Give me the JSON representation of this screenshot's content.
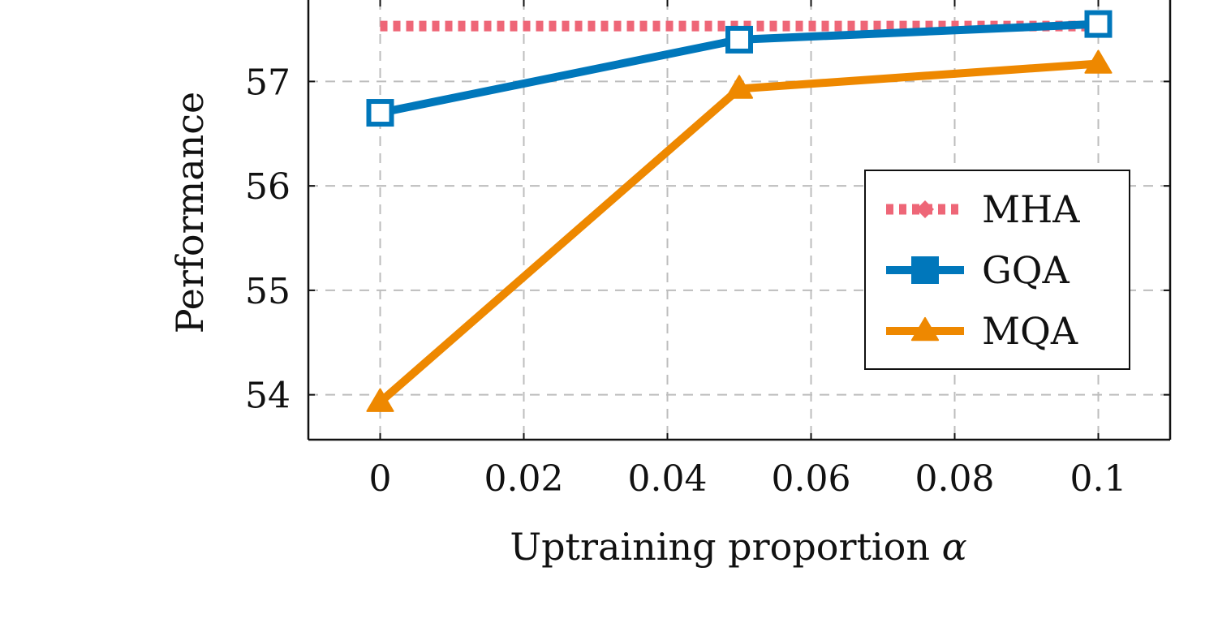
{
  "chart_data": {
    "type": "line",
    "title": "",
    "xlabel": "Uptraining proportion",
    "xlabel_symbol": "α",
    "ylabel": "Performance",
    "x_ticks": [
      0,
      0.02,
      0.04,
      0.06,
      0.08,
      0.1
    ],
    "x_tick_labels": [
      "0",
      "0.02",
      "0.04",
      "0.06",
      "0.08",
      "0.1"
    ],
    "y_ticks": [
      54,
      55,
      56,
      57
    ],
    "y_tick_labels": [
      "54",
      "55",
      "56",
      "57"
    ],
    "xlim": [
      -0.01,
      0.11
    ],
    "ylim": [
      53.57,
      57.78
    ],
    "grid": true,
    "legend_position": "right",
    "series": [
      {
        "name": "MHA",
        "color": "#ee6677",
        "style": "dotted",
        "marker": "diamond",
        "x": [
          0,
          0.05,
          0.1
        ],
        "y": [
          57.53,
          57.53,
          57.53
        ]
      },
      {
        "name": "GQA",
        "color": "#0077bb",
        "style": "solid",
        "marker": "square",
        "x": [
          0,
          0.05,
          0.1
        ],
        "y": [
          56.7,
          57.4,
          57.55
        ]
      },
      {
        "name": "MQA",
        "color": "#ee8800",
        "style": "solid",
        "marker": "triangle",
        "x": [
          0,
          0.05,
          0.1
        ],
        "y": [
          53.93,
          56.93,
          57.17
        ]
      }
    ]
  }
}
